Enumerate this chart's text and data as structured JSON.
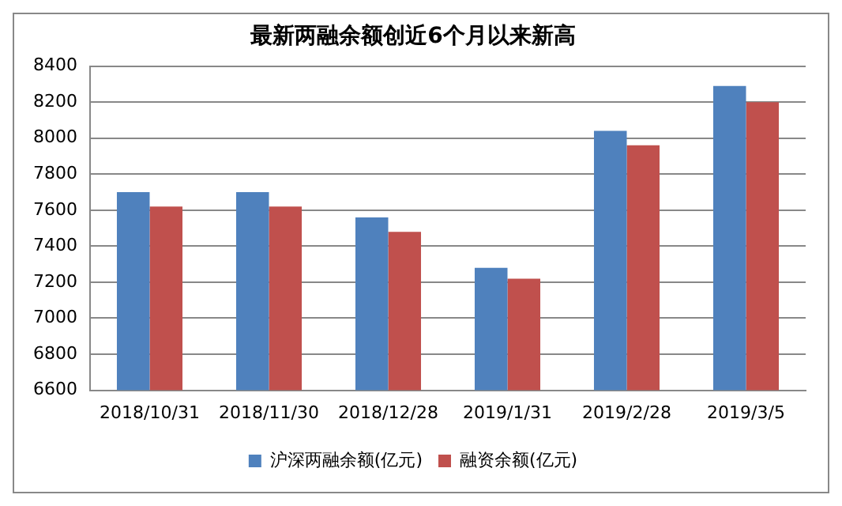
{
  "chart_data": {
    "type": "bar",
    "title": "最新两融余额创近6个月以来新高",
    "categories": [
      "2018/10/31",
      "2018/11/30",
      "2018/12/28",
      "2019/1/31",
      "2019/2/28",
      "2019/3/5"
    ],
    "series": [
      {
        "name": "沪深两融余额(亿元)",
        "color": "#4f81bd",
        "values": [
          7700,
          7700,
          7560,
          7280,
          8040,
          8290
        ]
      },
      {
        "name": "融资余额(亿元)",
        "color": "#c0504d",
        "values": [
          7620,
          7620,
          7480,
          7220,
          7960,
          8200
        ]
      }
    ],
    "ylim": [
      6600,
      8400
    ],
    "yticks": [
      6600,
      6800,
      7000,
      7200,
      7400,
      7600,
      7800,
      8000,
      8200,
      8400
    ],
    "grid": "y",
    "legend": "bottom"
  }
}
